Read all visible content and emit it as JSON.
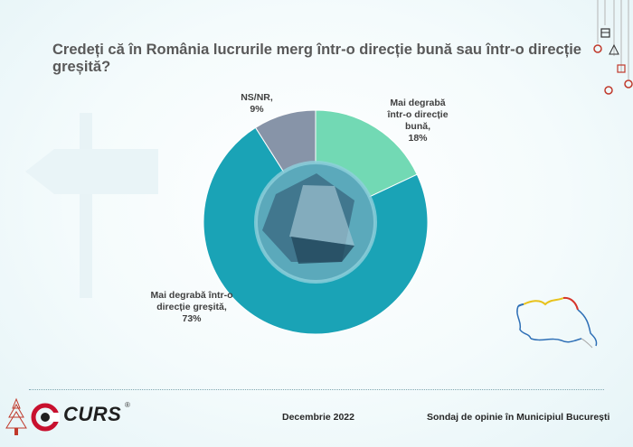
{
  "title": "Credeți că în România lucrurile merg într-o direcție bună sau într-o direcție greșită?",
  "chart_data": {
    "type": "pie",
    "subtype": "donut",
    "title": "Credeți că în România lucrurile merg într-o direcție bună sau într-o direcție greșită?",
    "categories": [
      "Mai degrabă într-o direcție bună",
      "Mai degrabă într-o direcție greșită",
      "NS/NR"
    ],
    "values": [
      18,
      73,
      9
    ],
    "unit": "%",
    "colors": [
      "#72d9b4",
      "#1aa3b6",
      "#8794a8"
    ],
    "labels": {
      "good": [
        "Mai degrabă",
        "într-o direcție",
        "bună,",
        "18%"
      ],
      "bad": [
        "Mai degrabă într-o",
        "direcție greșită,",
        "73%"
      ],
      "ns": [
        "NS/NR,",
        "9%"
      ]
    }
  },
  "footer": {
    "logo": "CURS",
    "registered": "®",
    "date": "Decembrie 2022",
    "source": "Sondaj de opinie în Municipiul București"
  }
}
